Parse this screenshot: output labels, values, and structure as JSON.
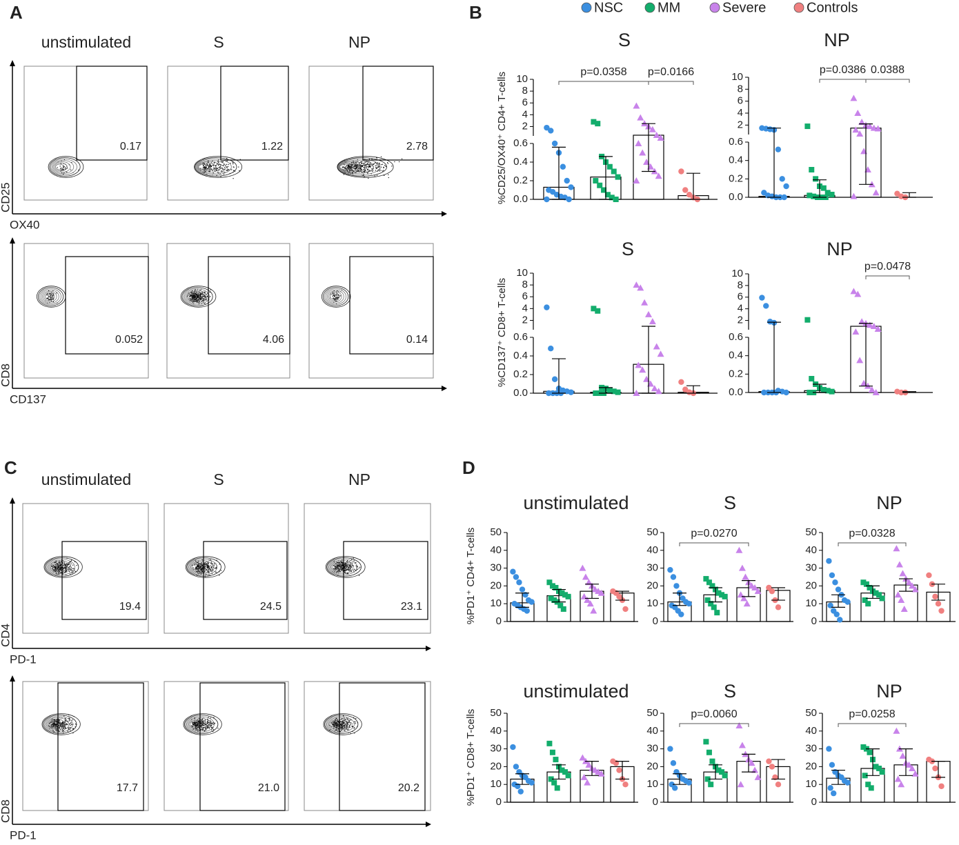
{
  "panel_labels": [
    "A",
    "B",
    "C",
    "D"
  ],
  "flow_panels": [
    {
      "columns": [
        "unstimulated",
        "S",
        "NP"
      ],
      "rows": [
        {
          "y_label": "CD25",
          "x_label": "OX40",
          "gates": [
            "0.17",
            "1.22",
            "2.78"
          ]
        },
        {
          "y_label": "CD8",
          "x_label": "CD137",
          "gates": [
            "0.052",
            "4.06",
            "0.14"
          ]
        }
      ]
    },
    {
      "columns": [
        "unstimulated",
        "S",
        "NP"
      ],
      "rows": [
        {
          "y_label": "CD4",
          "x_label": "PD-1",
          "gates": [
            "19.4",
            "24.5",
            "23.1"
          ]
        },
        {
          "y_label": "CD8",
          "x_label": "PD-1",
          "gates": [
            "17.7",
            "21.0",
            "20.2"
          ]
        }
      ]
    }
  ],
  "legend": [
    {
      "name": "NSC",
      "color": "#3b8fe0",
      "marker": "circle"
    },
    {
      "name": "MM",
      "color": "#13ad6c",
      "marker": "square"
    },
    {
      "name": "Severe",
      "color": "#c883ea",
      "marker": "triangle"
    },
    {
      "name": "Controls",
      "color": "#f08080",
      "marker": "circle"
    }
  ],
  "chart_data": [
    {
      "type": "bar",
      "title": "S",
      "ylabel": "%CD25/OX40⁺ CD4+ T-cells",
      "ylim": [
        0,
        0.6
      ],
      "yticks": [
        {
          "value": 0,
          "label": "0.0"
        },
        0.2,
        0.4,
        0.6
      ],
      "y_break": {
        "ylim": [
          1,
          10
        ],
        "yticks": [
          2,
          4,
          6,
          8,
          10
        ]
      },
      "series": [
        {
          "value": 0.13,
          "err": [
            0,
            0.56
          ],
          "points": [
            1.8,
            1.3,
            0.6,
            0.5,
            0.35,
            0.2,
            0.13,
            0.1,
            0.08,
            0.05,
            0.03,
            0.02,
            0,
            0
          ]
        },
        {
          "value": 0.24,
          "err": [
            0,
            0.46
          ],
          "points": [
            2.8,
            2.5,
            0.46,
            0.4,
            0.35,
            0.3,
            0.24,
            0.2,
            0.15,
            0.1,
            0.05,
            0.02,
            0
          ]
        },
        {
          "value": 0.9,
          "err": [
            0.3,
            2.5
          ],
          "points": [
            5.5,
            3.5,
            2.5,
            2,
            1.5,
            0.9,
            0.8,
            0.6,
            0.5,
            0.4,
            0.35,
            0.3,
            0.25,
            0.2
          ]
        },
        {
          "value": 0.04,
          "err": [
            0,
            0.28
          ],
          "points": [
            0.3,
            0.1,
            0.05,
            0.02,
            0
          ]
        }
      ],
      "annotations": [
        {
          "label": "p=0.0358",
          "from": 0,
          "to": 2
        },
        {
          "label": "p=0.0166",
          "from": 2,
          "to": 3
        }
      ]
    },
    {
      "type": "bar",
      "title": "NP",
      "ylim": [
        0,
        0.6
      ],
      "yticks": [
        {
          "value": 0,
          "label": "0.0"
        },
        0.2,
        0.4,
        0.6
      ],
      "y_break": {
        "ylim": [
          1,
          10
        ],
        "yticks": [
          2,
          4,
          6,
          8,
          10
        ]
      },
      "series": [
        {
          "value": 0.01,
          "err": [
            0,
            1.5
          ],
          "points": [
            1.5,
            1.4,
            1.3,
            1.2,
            0.52,
            0.2,
            0.12,
            0.05,
            0.02,
            0.01,
            0,
            0,
            0
          ]
        },
        {
          "value": 0.02,
          "err": [
            0,
            0.19
          ],
          "points": [
            1.8,
            0.3,
            0.2,
            0.12,
            0.1,
            0.05,
            0.03,
            0.02,
            0.01,
            0,
            0,
            0
          ]
        },
        {
          "value": 1.5,
          "err": [
            0.14,
            2.2
          ],
          "points": [
            6.5,
            4,
            2.5,
            2,
            1.8,
            1.5,
            1.4,
            1.2,
            0.9,
            0.5,
            0.3,
            0.14,
            0.05,
            0.01
          ]
        },
        {
          "value": 0,
          "err": [
            0,
            0.05
          ],
          "points": [
            0.04,
            0.01,
            0
          ]
        }
      ],
      "annotations": [
        {
          "label": "p=0.0386",
          "from": 1,
          "to": 2
        },
        {
          "label": "0.0388",
          "from": 2,
          "to": 3
        }
      ]
    },
    {
      "type": "bar",
      "title": "S",
      "ylabel": "%CD137⁺ CD8+ T-cells",
      "ylim": [
        0,
        0.6
      ],
      "yticks": [
        {
          "value": 0,
          "label": "0.0"
        },
        0.2,
        0.4,
        0.6
      ],
      "y_break": {
        "ylim": [
          1,
          10
        ],
        "yticks": [
          2,
          4,
          6,
          8,
          10
        ]
      },
      "series": [
        {
          "value": 0.02,
          "err": [
            0,
            0.37
          ],
          "points": [
            4.2,
            0.48,
            0.15,
            0.05,
            0.03,
            0.02,
            0.01,
            0,
            0,
            0,
            0
          ]
        },
        {
          "value": 0.01,
          "err": [
            0,
            0.06
          ],
          "points": [
            4,
            3.6,
            0.06,
            0.05,
            0.03,
            0.02,
            0.01,
            0,
            0,
            0
          ]
        },
        {
          "value": 0.31,
          "err": [
            0,
            1.0
          ],
          "points": [
            8,
            7.5,
            5,
            3,
            1.8,
            0.5,
            0.42,
            0.3,
            0.25,
            0.15,
            0.1,
            0.05,
            0.02,
            0
          ]
        },
        {
          "value": 0.01,
          "err": [
            0,
            0.08
          ],
          "points": [
            0.12,
            0.04,
            0.01,
            0
          ]
        }
      ],
      "annotations": []
    },
    {
      "type": "bar",
      "title": "NP",
      "ylim": [
        0,
        0.6
      ],
      "yticks": [
        {
          "value": 0,
          "label": "0.0"
        },
        0.2,
        0.4,
        0.6
      ],
      "y_break": {
        "ylim": [
          1,
          10
        ],
        "yticks": [
          2,
          4,
          6,
          8,
          10
        ]
      },
      "series": [
        {
          "value": 0.01,
          "err": [
            0,
            1.7
          ],
          "points": [
            5.9,
            4.5,
            1.8,
            1.6,
            0.02,
            0.01,
            0,
            0,
            0,
            0,
            0
          ]
        },
        {
          "value": 0.02,
          "err": [
            0,
            0.09
          ],
          "points": [
            2.1,
            0.15,
            0.09,
            0.05,
            0.03,
            0.02,
            0.01,
            0,
            0
          ]
        },
        {
          "value": 1.0,
          "err": [
            0.07,
            1.5
          ],
          "points": [
            7,
            6.5,
            1.8,
            1.5,
            1.2,
            1,
            0.9,
            0.8,
            0.35,
            0.1,
            0.07,
            0.03,
            0
          ]
        },
        {
          "value": 0,
          "err": [
            0,
            0.01
          ],
          "points": [
            0.01,
            0,
            0
          ]
        }
      ],
      "annotations": [
        {
          "label": "p=0.0478",
          "from": 2,
          "to": 3
        }
      ]
    },
    {
      "type": "bar",
      "title": "unstimulated",
      "ylabel": "%PD1⁺ CD4+ T-cells",
      "ylim": [
        0,
        50
      ],
      "yticks": [
        0,
        10,
        20,
        30,
        40,
        50
      ],
      "series": [
        {
          "value": 10.5,
          "err": [
            8,
            16
          ],
          "points": [
            28,
            25,
            22,
            18,
            15,
            12,
            11,
            10,
            9,
            8,
            7,
            6
          ]
        },
        {
          "value": 14.5,
          "err": [
            11,
            18
          ],
          "points": [
            22,
            20,
            19,
            17,
            16,
            15,
            14,
            13,
            12,
            11,
            9,
            7
          ]
        },
        {
          "value": 17,
          "err": [
            13,
            21
          ],
          "points": [
            30,
            25,
            22,
            20,
            18,
            17,
            16,
            14,
            12,
            10,
            6
          ]
        },
        {
          "value": 16,
          "err": [
            12,
            17
          ],
          "points": [
            17,
            16,
            14,
            12,
            7
          ]
        }
      ],
      "annotations": []
    },
    {
      "type": "bar",
      "title": "S",
      "ylim": [
        0,
        50
      ],
      "yticks": [
        0,
        10,
        20,
        30,
        40,
        50
      ],
      "series": [
        {
          "value": 11,
          "err": [
            9,
            16
          ],
          "points": [
            29,
            25,
            20,
            16,
            13,
            11,
            10,
            9,
            8,
            6,
            4
          ]
        },
        {
          "value": 15,
          "err": [
            11,
            19
          ],
          "points": [
            24,
            22,
            20,
            18,
            16,
            15,
            14,
            12,
            10,
            8,
            5
          ]
        },
        {
          "value": 19,
          "err": [
            14,
            23
          ],
          "points": [
            40,
            30,
            25,
            22,
            20,
            19,
            17,
            15,
            13,
            10
          ]
        },
        {
          "value": 17.5,
          "err": [
            12,
            19
          ],
          "points": [
            19,
            17,
            12,
            8
          ]
        }
      ],
      "annotations": [
        {
          "label": "p=0.0270",
          "from": 0,
          "to": 2
        }
      ]
    },
    {
      "type": "bar",
      "title": "NP",
      "ylim": [
        0,
        50
      ],
      "yticks": [
        0,
        10,
        20,
        30,
        40,
        50
      ],
      "series": [
        {
          "value": 11,
          "err": [
            8,
            15
          ],
          "points": [
            34,
            26,
            22,
            18,
            15,
            12,
            11,
            9,
            6,
            4,
            1
          ]
        },
        {
          "value": 16,
          "err": [
            13,
            20
          ],
          "points": [
            22,
            21,
            19,
            17,
            16,
            15,
            13,
            12,
            10
          ]
        },
        {
          "value": 20.5,
          "err": [
            17,
            24
          ],
          "points": [
            41,
            32,
            27,
            24,
            22,
            20,
            18,
            15,
            12,
            7
          ]
        },
        {
          "value": 16.5,
          "err": [
            12,
            21
          ],
          "points": [
            26,
            21,
            14,
            10,
            6
          ]
        }
      ],
      "annotations": [
        {
          "label": "p=0.0328",
          "from": 0,
          "to": 2
        }
      ]
    },
    {
      "type": "bar",
      "title": "unstimulated",
      "ylabel": "%PD1⁺ CD8+ T-cells",
      "ylim": [
        0,
        50
      ],
      "yticks": [
        0,
        10,
        20,
        30,
        40,
        50
      ],
      "series": [
        {
          "value": 13,
          "err": [
            10,
            16
          ],
          "points": [
            31,
            20,
            17,
            15,
            14,
            12,
            11,
            10,
            9,
            6
          ]
        },
        {
          "value": 17,
          "err": [
            13,
            21
          ],
          "points": [
            33,
            28,
            24,
            20,
            18,
            17,
            15,
            13,
            11,
            8
          ]
        },
        {
          "value": 18,
          "err": [
            15,
            23
          ],
          "points": [
            25,
            23,
            21,
            19,
            18,
            17,
            16,
            14,
            11
          ]
        },
        {
          "value": 20,
          "err": [
            13,
            23
          ],
          "points": [
            23,
            22,
            18,
            13,
            10
          ]
        }
      ],
      "annotations": []
    },
    {
      "type": "bar",
      "title": "S",
      "ylim": [
        0,
        50
      ],
      "yticks": [
        0,
        10,
        20,
        30,
        40,
        50
      ],
      "series": [
        {
          "value": 13,
          "err": [
            10,
            16
          ],
          "points": [
            30,
            22,
            17,
            15,
            13,
            12,
            11,
            10,
            8
          ]
        },
        {
          "value": 17,
          "err": [
            13,
            21
          ],
          "points": [
            34,
            28,
            23,
            20,
            18,
            17,
            15,
            13,
            10
          ]
        },
        {
          "value": 23,
          "err": [
            17,
            27
          ],
          "points": [
            43,
            32,
            27,
            24,
            22,
            18,
            14,
            10
          ]
        },
        {
          "value": 20,
          "err": [
            13,
            24
          ],
          "points": [
            23,
            20,
            14,
            10
          ]
        }
      ],
      "annotations": [
        {
          "label": "p=0.0060",
          "from": 0,
          "to": 2
        }
      ]
    },
    {
      "type": "bar",
      "title": "NP",
      "ylim": [
        0,
        50
      ],
      "yticks": [
        0,
        10,
        20,
        30,
        40,
        50
      ],
      "series": [
        {
          "value": 13.5,
          "err": [
            10,
            18
          ],
          "points": [
            30,
            21,
            17,
            15,
            14,
            12,
            11,
            8,
            5
          ]
        },
        {
          "value": 19,
          "err": [
            15,
            30
          ],
          "points": [
            31,
            30,
            28,
            24,
            20,
            19,
            17,
            15,
            10,
            8
          ]
        },
        {
          "value": 21,
          "err": [
            15,
            30
          ],
          "points": [
            40,
            30,
            26,
            22,
            21,
            19,
            16,
            13,
            10
          ]
        },
        {
          "value": 23,
          "err": [
            14,
            23
          ],
          "points": [
            24,
            23,
            19,
            14,
            9
          ]
        }
      ],
      "annotations": [
        {
          "label": "p=0.0258",
          "from": 0,
          "to": 2
        }
      ]
    }
  ]
}
